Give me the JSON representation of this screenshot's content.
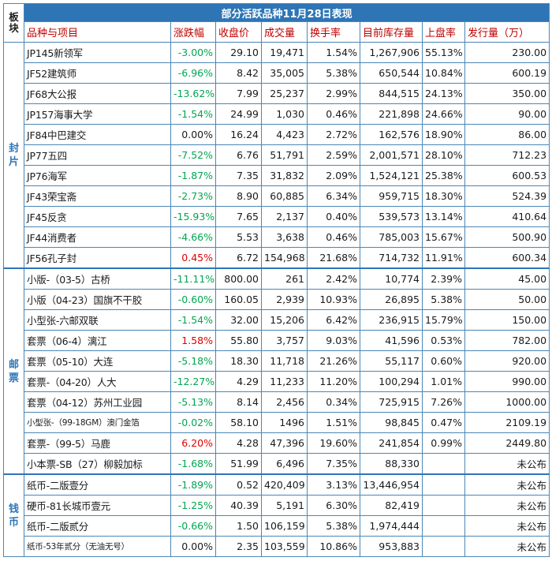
{
  "table": {
    "title": "部分活跃品种11月28日表现",
    "block_header_line1": "板",
    "block_header_line2": "块",
    "headers": [
      "品种与项目",
      "涨跌幅",
      "收盘价",
      "成交量",
      "换手率",
      "目前库存量",
      "上盘率",
      "发行量（万）"
    ],
    "groups": [
      {
        "name": "封片",
        "chars": [
          "封",
          "片"
        ],
        "rows": [
          {
            "name": "JP145新领军",
            "change": "-3.00%",
            "dir": "neg",
            "close": "29.10",
            "volume": "19,471",
            "turnover": "1.54%",
            "stock": "1,267,906",
            "upper": "55.13%",
            "issue": "230.00"
          },
          {
            "name": "JF52建筑师",
            "change": "-6.96%",
            "dir": "neg",
            "close": "8.42",
            "volume": "35,005",
            "turnover": "5.38%",
            "stock": "650,544",
            "upper": "10.84%",
            "issue": "600.19"
          },
          {
            "name": "JF68大公报",
            "change": "-13.62%",
            "dir": "neg",
            "close": "7.99",
            "volume": "25,237",
            "turnover": "2.99%",
            "stock": "844,515",
            "upper": "24.13%",
            "issue": "350.00"
          },
          {
            "name": "JP157海事大学",
            "change": "-1.54%",
            "dir": "neg",
            "close": "24.99",
            "volume": "1,030",
            "turnover": "0.46%",
            "stock": "221,898",
            "upper": "24.66%",
            "issue": "90.00"
          },
          {
            "name": "JF84中巴建交",
            "change": "0.00%",
            "dir": "zero",
            "close": "16.24",
            "volume": "4,423",
            "turnover": "2.72%",
            "stock": "162,576",
            "upper": "18.90%",
            "issue": "86.00"
          },
          {
            "name": "JP77五四",
            "change": "-7.52%",
            "dir": "neg",
            "close": "6.76",
            "volume": "51,791",
            "turnover": "2.59%",
            "stock": "2,001,571",
            "upper": "28.10%",
            "issue": "712.23"
          },
          {
            "name": "JP76海军",
            "change": "-1.87%",
            "dir": "neg",
            "close": "7.35",
            "volume": "31,832",
            "turnover": "2.09%",
            "stock": "1,524,121",
            "upper": "25.38%",
            "issue": "600.53"
          },
          {
            "name": "JF43荣宝斋",
            "change": "-2.73%",
            "dir": "neg",
            "close": "8.90",
            "volume": "60,885",
            "turnover": "6.34%",
            "stock": "959,715",
            "upper": "18.30%",
            "issue": "524.39"
          },
          {
            "name": "JF45反贪",
            "change": "-15.93%",
            "dir": "neg",
            "close": "7.65",
            "volume": "2,137",
            "turnover": "0.40%",
            "stock": "539,573",
            "upper": "13.14%",
            "issue": "410.64"
          },
          {
            "name": "JF44消费者",
            "change": "-4.66%",
            "dir": "neg",
            "close": "5.53",
            "volume": "3,638",
            "turnover": "0.46%",
            "stock": "785,003",
            "upper": "15.67%",
            "issue": "500.90"
          },
          {
            "name": "JF56孔子封",
            "change": "0.45%",
            "dir": "pos",
            "close": "6.72",
            "volume": "154,968",
            "turnover": "21.68%",
            "stock": "714,732",
            "upper": "11.91%",
            "issue": "600.34"
          }
        ]
      },
      {
        "name": "邮票",
        "chars": [
          "邮",
          "票"
        ],
        "rows": [
          {
            "name": "小版-（03-5）古桥",
            "change": "-11.11%",
            "dir": "neg",
            "close": "800.00",
            "volume": "261",
            "turnover": "2.42%",
            "stock": "10,774",
            "upper": "2.39%",
            "issue": "45.00"
          },
          {
            "name": "小版（04-23）国旗不干胶",
            "change": "-0.60%",
            "dir": "neg",
            "close": "160.05",
            "volume": "2,939",
            "turnover": "10.93%",
            "stock": "26,895",
            "upper": "5.38%",
            "issue": "50.00"
          },
          {
            "name": "小型张-六邮双联",
            "change": "-1.54%",
            "dir": "neg",
            "close": "32.00",
            "volume": "15,206",
            "turnover": "6.42%",
            "stock": "236,915",
            "upper": "15.79%",
            "issue": "150.00"
          },
          {
            "name": "套票（06-4）漓江",
            "change": "1.58%",
            "dir": "pos",
            "close": "55.80",
            "volume": "3,757",
            "turnover": "9.03%",
            "stock": "41,596",
            "upper": "0.53%",
            "issue": "782.00"
          },
          {
            "name": "套票（05-10）大连",
            "change": "-5.18%",
            "dir": "neg",
            "close": "18.30",
            "volume": "11,718",
            "turnover": "21.26%",
            "stock": "55,117",
            "upper": "0.60%",
            "issue": "920.00"
          },
          {
            "name": "套票-（04-20）人大",
            "change": "-12.27%",
            "dir": "neg",
            "close": "4.29",
            "volume": "11,233",
            "turnover": "11.20%",
            "stock": "100,294",
            "upper": "1.01%",
            "issue": "990.00"
          },
          {
            "name": "套票（04-12）苏州工业园",
            "change": "-5.13%",
            "dir": "neg",
            "close": "8.14",
            "volume": "2,456",
            "turnover": "0.34%",
            "stock": "725,915",
            "upper": "7.26%",
            "issue": "1000.00"
          },
          {
            "name": "小型张-（99-18GM）澳门金箔",
            "change": "-0.02%",
            "dir": "neg",
            "close": "58.10",
            "volume": "1496",
            "turnover": "1.51%",
            "stock": "98,845",
            "upper": "0.47%",
            "issue": "2109.19",
            "small": true
          },
          {
            "name": "套票-（99-5）马鹿",
            "change": "6.20%",
            "dir": "pos",
            "close": "4.28",
            "volume": "47,396",
            "turnover": "19.60%",
            "stock": "241,854",
            "upper": "0.99%",
            "issue": "2449.80"
          },
          {
            "name": "小本票-SB（27）柳毅加标",
            "change": "-1.68%",
            "dir": "neg",
            "close": "51.99",
            "volume": "6,496",
            "turnover": "7.35%",
            "stock": "88,330",
            "upper": "",
            "issue": "未公布"
          }
        ]
      },
      {
        "name": "钱币",
        "chars": [
          "钱",
          "币"
        ],
        "rows": [
          {
            "name": "纸币-二版壹分",
            "change": "-1.89%",
            "dir": "neg",
            "close": "0.52",
            "volume": "420,409",
            "turnover": "3.13%",
            "stock": "13,446,954",
            "upper": "",
            "issue": "未公布"
          },
          {
            "name": "硬币-81长城币壹元",
            "change": "-1.25%",
            "dir": "neg",
            "close": "40.39",
            "volume": "5,191",
            "turnover": "6.30%",
            "stock": "82,419",
            "upper": "",
            "issue": "未公布"
          },
          {
            "name": "纸币-二版贰分",
            "change": "-0.66%",
            "dir": "neg",
            "close": "1.50",
            "volume": "106,159",
            "turnover": "5.38%",
            "stock": "1,974,444",
            "upper": "",
            "issue": "未公布"
          },
          {
            "name": "纸币-53年贰分（无油无号）",
            "change": "0.00%",
            "dir": "zero",
            "close": "2.35",
            "volume": "103,559",
            "turnover": "10.86%",
            "stock": "953,883",
            "upper": "",
            "issue": "未公布",
            "small": true
          }
        ]
      }
    ]
  }
}
